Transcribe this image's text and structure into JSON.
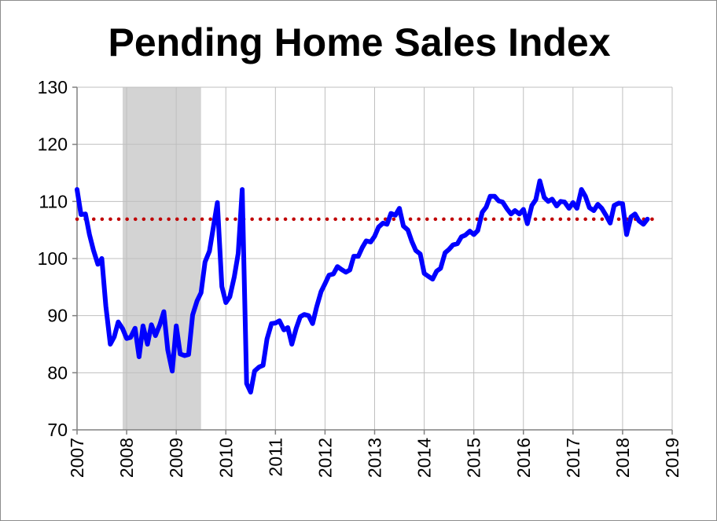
{
  "chart_data": {
    "type": "line",
    "title": "Pending Home Sales Index",
    "xlabel": "",
    "ylabel": "",
    "xlim": [
      2007,
      2019
    ],
    "ylim": [
      70,
      130
    ],
    "grid": true,
    "y_ticks": [
      "70",
      "80",
      "90",
      "100",
      "110",
      "120",
      "130"
    ],
    "x_ticks": [
      "2007",
      "2008",
      "2009",
      "2010",
      "2011",
      "2012",
      "2013",
      "2014",
      "2015",
      "2016",
      "2017",
      "2018",
      "2019"
    ],
    "recession_shading": [
      2007.92,
      2009.5
    ],
    "reference_line": 106.9,
    "colors": {
      "series": "#0000ff",
      "reference": "#c00000",
      "shading": "#d3d3d3",
      "grid": "#bfbfbf"
    },
    "series": [
      {
        "x": [
          2007.0,
          2007.08,
          2007.17,
          2007.25,
          2007.33,
          2007.42,
          2007.5,
          2007.58,
          2007.67,
          2007.75,
          2007.83,
          2007.92,
          2008.0,
          2008.08,
          2008.17,
          2008.25,
          2008.33,
          2008.42,
          2008.5,
          2008.58,
          2008.67,
          2008.75,
          2008.83,
          2008.92,
          2009.0,
          2009.08,
          2009.17,
          2009.25,
          2009.33,
          2009.42,
          2009.5,
          2009.58,
          2009.67,
          2009.75,
          2009.83,
          2009.92,
          2010.0,
          2010.08,
          2010.17,
          2010.25,
          2010.33,
          2010.42,
          2010.5,
          2010.58,
          2010.67,
          2010.75,
          2010.83,
          2010.92,
          2011.0,
          2011.08,
          2011.17,
          2011.25,
          2011.33,
          2011.42,
          2011.5,
          2011.58,
          2011.67,
          2011.75,
          2011.83,
          2011.92,
          2012.0,
          2012.08,
          2012.17,
          2012.25,
          2012.33,
          2012.42,
          2012.5,
          2012.58,
          2012.67,
          2012.75,
          2012.83,
          2012.92,
          2013.0,
          2013.08,
          2013.17,
          2013.25,
          2013.33,
          2013.42,
          2013.5,
          2013.58,
          2013.67,
          2013.75,
          2013.83,
          2013.92,
          2014.0,
          2014.08,
          2014.17,
          2014.25,
          2014.33,
          2014.42,
          2014.5,
          2014.58,
          2014.67,
          2014.75,
          2014.83,
          2014.92,
          2015.0,
          2015.08,
          2015.17,
          2015.25,
          2015.33,
          2015.42,
          2015.5,
          2015.58,
          2015.67,
          2015.75,
          2015.83,
          2015.92,
          2016.0,
          2016.08,
          2016.17,
          2016.25,
          2016.33,
          2016.42,
          2016.5,
          2016.58,
          2016.67,
          2016.75,
          2016.83,
          2016.92,
          2017.0,
          2017.08,
          2017.17,
          2017.25,
          2017.33,
          2017.42,
          2017.5,
          2017.58,
          2017.67,
          2017.75,
          2017.83,
          2017.92,
          2018.0,
          2018.08,
          2018.17,
          2018.25,
          2018.33,
          2018.42,
          2018.5
        ],
        "y": [
          112.1,
          107.7,
          107.8,
          104.2,
          101.5,
          99.0,
          100.0,
          91.7,
          85.0,
          86.3,
          88.9,
          87.7,
          86.0,
          86.2,
          87.8,
          82.8,
          88.2,
          85.0,
          88.4,
          86.5,
          88.4,
          90.7,
          84.0,
          80.3,
          88.2,
          83.3,
          83.0,
          83.2,
          90.1,
          92.6,
          94.0,
          99.4,
          101.3,
          105.6,
          109.8,
          95.1,
          92.3,
          93.3,
          96.8,
          100.9,
          112.1,
          78.1,
          76.6,
          80.3,
          81.0,
          81.3,
          85.9,
          88.6,
          88.7,
          89.1,
          87.5,
          87.9,
          85.0,
          87.8,
          89.8,
          90.2,
          90.0,
          88.6,
          91.5,
          94.2,
          95.6,
          97.1,
          97.3,
          98.6,
          98.1,
          97.6,
          98.0,
          100.4,
          100.4,
          101.9,
          103.1,
          102.9,
          103.9,
          105.5,
          106.2,
          106.0,
          107.9,
          107.6,
          108.8,
          105.7,
          105.0,
          103.0,
          101.4,
          100.8,
          97.4,
          96.9,
          96.4,
          97.8,
          98.3,
          101.0,
          101.6,
          102.4,
          102.6,
          103.8,
          104.1,
          104.8,
          104.2,
          104.9,
          108.1,
          109.0,
          110.9,
          110.9,
          110.1,
          109.9,
          108.7,
          107.8,
          108.4,
          107.8,
          108.6,
          106.1,
          109.3,
          110.3,
          113.6,
          110.7,
          110.0,
          110.4,
          109.2,
          110.0,
          109.9,
          108.8,
          109.8,
          108.8,
          112.1,
          110.9,
          108.9,
          108.4,
          109.5,
          108.8,
          107.5,
          106.2,
          109.3,
          109.7,
          109.6,
          104.2,
          107.3,
          107.8,
          106.6,
          106.0,
          106.9
        ]
      }
    ]
  }
}
